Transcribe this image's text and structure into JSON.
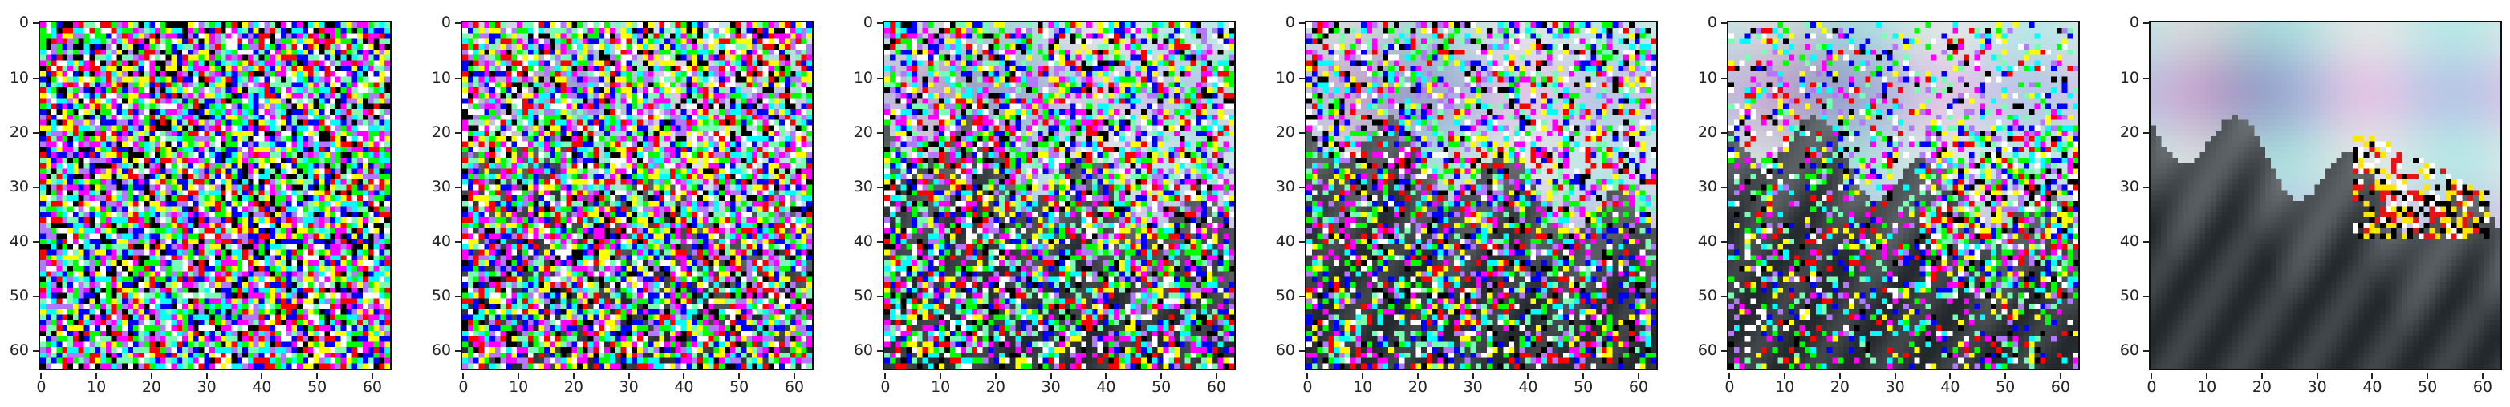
{
  "figure": {
    "panels": [
      {
        "id": "step-1",
        "noise_level": 1.0
      },
      {
        "id": "step-2",
        "noise_level": 0.88
      },
      {
        "id": "step-3",
        "noise_level": 0.72
      },
      {
        "id": "step-4",
        "noise_level": 0.55
      },
      {
        "id": "step-5",
        "noise_level": 0.35
      },
      {
        "id": "step-6",
        "noise_level": 0.0
      }
    ],
    "image_size": 64,
    "y_ticks": [
      "0",
      "10",
      "20",
      "30",
      "40",
      "50",
      "60"
    ],
    "x_ticks": [
      "0",
      "10",
      "20",
      "30",
      "40",
      "50",
      "60"
    ],
    "y_tick_values": [
      0,
      10,
      20,
      30,
      40,
      50,
      60
    ],
    "x_tick_values": [
      0,
      10,
      20,
      30,
      40,
      50,
      60
    ]
  },
  "colors": {
    "axis": "#222222",
    "frame": "#111111",
    "background": "#ffffff"
  }
}
